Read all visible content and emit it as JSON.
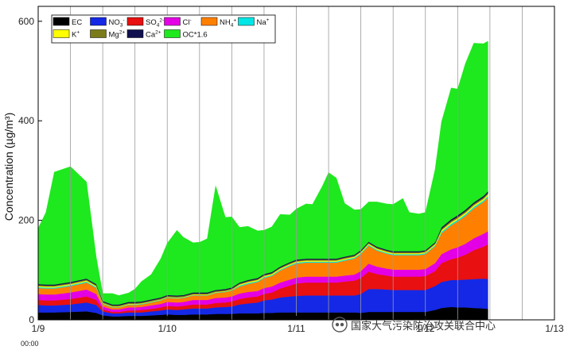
{
  "chart_data": {
    "type": "area",
    "stacked": true,
    "title": "",
    "ylabel": "Concentration (µg/m³)",
    "xlabel": "",
    "ylim": [
      0,
      630
    ],
    "xlim": [
      0,
      8
    ],
    "yticks": [
      0,
      200,
      400,
      600
    ],
    "x_tick_labels": [
      {
        "x": 0,
        "label": "1/9"
      },
      {
        "x": 2,
        "label": "1/10"
      },
      {
        "x": 4,
        "label": "1/11"
      },
      {
        "x": 6,
        "label": "1/12"
      },
      {
        "x": 8,
        "label": "1/13"
      }
    ],
    "time_label": "00:00",
    "grid": "vertical lines every 12 h",
    "legend_position": "top-left",
    "x": [
      0.0,
      0.12,
      0.25,
      0.5,
      0.75,
      0.9,
      1.0,
      1.15,
      1.25,
      1.4,
      1.5,
      1.6,
      1.75,
      1.9,
      2.0,
      2.15,
      2.25,
      2.4,
      2.5,
      2.62,
      2.75,
      2.9,
      3.0,
      3.12,
      3.25,
      3.4,
      3.5,
      3.62,
      3.75,
      3.9,
      4.0,
      4.15,
      4.25,
      4.4,
      4.5,
      4.62,
      4.75,
      4.9,
      5.0,
      5.12,
      5.25,
      5.4,
      5.5,
      5.65,
      5.75,
      5.9,
      6.0,
      6.15,
      6.25,
      6.4,
      6.5,
      6.62,
      6.75,
      6.9,
      6.97
    ],
    "series": [
      {
        "name": "EC",
        "color": "#000000",
        "values": [
          15,
          15,
          15,
          16,
          17,
          14,
          9,
          7,
          7,
          8,
          8,
          8,
          9,
          10,
          11,
          10,
          10,
          11,
          11,
          11,
          12,
          12,
          12,
          13,
          13,
          13,
          14,
          14,
          15,
          15,
          15,
          15,
          15,
          15,
          15,
          15,
          15,
          15,
          14,
          16,
          16,
          16,
          16,
          16,
          16,
          16,
          16,
          20,
          24,
          26,
          25,
          25,
          24,
          23,
          22
        ]
      },
      {
        "name": "NO3-",
        "color": "#1428e6",
        "values": [
          15,
          14,
          14,
          15,
          18,
          16,
          8,
          6,
          6,
          7,
          7,
          7,
          8,
          9,
          10,
          10,
          11,
          12,
          12,
          12,
          13,
          14,
          15,
          18,
          20,
          22,
          25,
          27,
          30,
          32,
          33,
          34,
          34,
          34,
          34,
          34,
          34,
          34,
          38,
          46,
          46,
          45,
          44,
          44,
          44,
          44,
          44,
          48,
          52,
          54,
          55,
          56,
          58,
          60,
          60
        ]
      },
      {
        "name": "SO4 2-",
        "color": "#e81010",
        "values": [
          10,
          10,
          10,
          11,
          12,
          10,
          4,
          3,
          3,
          4,
          4,
          5,
          5,
          6,
          7,
          7,
          7,
          8,
          8,
          8,
          9,
          9,
          10,
          11,
          12,
          12,
          13,
          14,
          18,
          22,
          25,
          26,
          26,
          26,
          26,
          26,
          28,
          30,
          32,
          35,
          30,
          28,
          27,
          27,
          27,
          27,
          28,
          30,
          38,
          42,
          45,
          50,
          58,
          64,
          70
        ]
      },
      {
        "name": "Cl-",
        "color": "#e400e4",
        "values": [
          12,
          12,
          12,
          13,
          14,
          12,
          6,
          5,
          5,
          6,
          6,
          6,
          7,
          7,
          8,
          8,
          8,
          9,
          9,
          9,
          10,
          10,
          10,
          11,
          11,
          11,
          12,
          12,
          12,
          12,
          12,
          12,
          12,
          12,
          12,
          12,
          12,
          12,
          14,
          16,
          15,
          14,
          14,
          14,
          14,
          14,
          14,
          16,
          18,
          20,
          21,
          22,
          24,
          26,
          26
        ]
      },
      {
        "name": "NH4+",
        "color": "#ff8000",
        "values": [
          12,
          12,
          12,
          13,
          14,
          12,
          5,
          4,
          4,
          5,
          5,
          5,
          6,
          7,
          8,
          8,
          8,
          9,
          9,
          9,
          10,
          11,
          12,
          14,
          16,
          18,
          20,
          21,
          24,
          27,
          28,
          28,
          28,
          28,
          28,
          28,
          30,
          32,
          34,
          36,
          32,
          30,
          29,
          29,
          29,
          29,
          30,
          34,
          42,
          48,
          52,
          56,
          60,
          64,
          68
        ]
      },
      {
        "name": "Na+",
        "color": "#00e5e5",
        "values": [
          2,
          2,
          2,
          2,
          2,
          2,
          1,
          1,
          1,
          1,
          1,
          1,
          1,
          1,
          1,
          1,
          1,
          1,
          1,
          1,
          1,
          1,
          1,
          2,
          2,
          2,
          2,
          2,
          2,
          2,
          2,
          2,
          2,
          2,
          2,
          2,
          2,
          2,
          2,
          2,
          2,
          2,
          2,
          2,
          2,
          2,
          2,
          2,
          3,
          3,
          3,
          3,
          3,
          3,
          3
        ]
      },
      {
        "name": "K+",
        "color": "#ffff00",
        "values": [
          2,
          2,
          2,
          2,
          2,
          2,
          1,
          1,
          1,
          1,
          1,
          1,
          1,
          1,
          1,
          1,
          1,
          1,
          1,
          1,
          1,
          1,
          1,
          2,
          2,
          2,
          2,
          2,
          2,
          2,
          2,
          2,
          2,
          2,
          2,
          2,
          2,
          2,
          2,
          2,
          2,
          2,
          2,
          2,
          2,
          2,
          2,
          2,
          3,
          3,
          3,
          3,
          3,
          3,
          3
        ]
      },
      {
        "name": "Mg2+",
        "color": "#7b7b1a",
        "values": [
          2,
          2,
          2,
          2,
          2,
          2,
          2,
          2,
          2,
          2,
          2,
          2,
          2,
          2,
          2,
          2,
          2,
          2,
          2,
          2,
          2,
          2,
          2,
          2,
          2,
          2,
          2,
          2,
          2,
          2,
          2,
          2,
          2,
          2,
          2,
          2,
          2,
          2,
          2,
          2,
          2,
          2,
          2,
          2,
          2,
          2,
          2,
          2,
          3,
          3,
          3,
          3,
          3,
          3,
          3
        ]
      },
      {
        "name": "Ca2+",
        "color": "#101050",
        "values": [
          2,
          2,
          2,
          2,
          2,
          2,
          2,
          2,
          2,
          2,
          2,
          2,
          2,
          2,
          2,
          2,
          2,
          2,
          2,
          2,
          2,
          2,
          2,
          2,
          2,
          2,
          2,
          2,
          2,
          2,
          2,
          2,
          2,
          2,
          2,
          2,
          2,
          2,
          2,
          2,
          2,
          2,
          2,
          2,
          2,
          2,
          2,
          2,
          3,
          3,
          3,
          3,
          3,
          3,
          3
        ]
      },
      {
        "name": "OC*1.6",
        "color": "#1ee81e",
        "values": [
          112,
          145,
          226,
          232,
          194,
          54,
          15,
          22,
          18,
          18,
          26,
          40,
          50,
          78,
          104,
          131,
          116,
          100,
          101,
          108,
          209,
          144,
          142,
          111,
          108,
          95,
          88,
          91,
          105,
          95,
          102,
          110,
          109,
          145,
          173,
          162,
          107,
          90,
          82,
          80,
          90,
          92,
          94,
          106,
          78,
          75,
          76,
          146,
          212,
          264,
          254,
          294,
          320,
          306,
          302
        ]
      }
    ]
  },
  "watermark": {
    "text": "国家大气污染防治攻关联合中心"
  }
}
